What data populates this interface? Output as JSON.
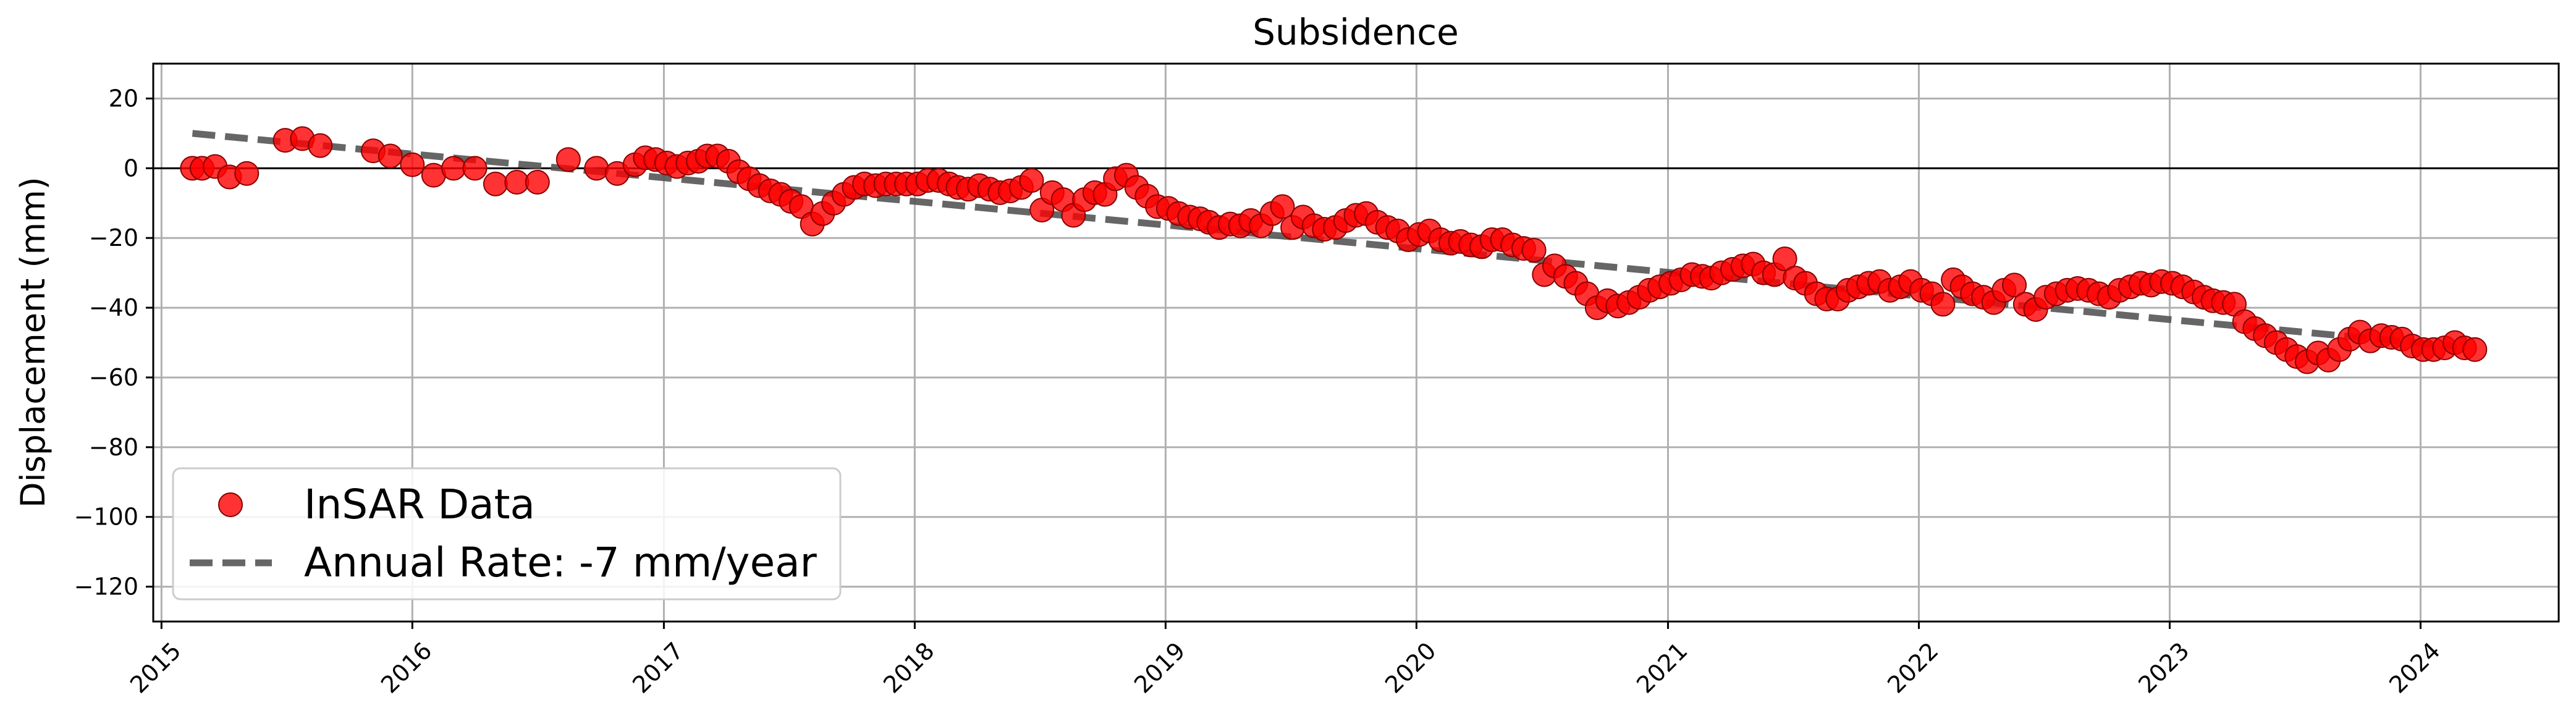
{
  "chart_data": {
    "type": "scatter",
    "title": "Subsidence",
    "xlabel": "",
    "ylabel": "Displacement (mm)",
    "xlim": [
      "2014-12-20",
      "2024-07-20"
    ],
    "ylim": [
      -130,
      30
    ],
    "x_ticks": [
      "2015",
      "2016",
      "2017",
      "2018",
      "2019",
      "2020",
      "2021",
      "2022",
      "2023",
      "2024"
    ],
    "y_ticks": [
      20,
      0,
      -20,
      -40,
      -60,
      -80,
      -100,
      -120
    ],
    "y_tick_labels": [
      "20",
      "0",
      "−20",
      "−40",
      "−60",
      "−80",
      "−100",
      "−120"
    ],
    "grid": true,
    "zero_line": true,
    "legend_position": "bottom-left",
    "series": [
      {
        "name": "InSAR Data",
        "kind": "scatter",
        "color": "#ff0000",
        "edge_color": "#8b0000",
        "points": [
          [
            "2015-02-15",
            0
          ],
          [
            "2015-03-01",
            0
          ],
          [
            "2015-03-20",
            0.5
          ],
          [
            "2015-04-10",
            -2.5
          ],
          [
            "2015-05-05",
            -1.5
          ],
          [
            "2015-06-30",
            8
          ],
          [
            "2015-07-25",
            8.5
          ],
          [
            "2015-08-20",
            6.5
          ],
          [
            "2015-11-05",
            5
          ],
          [
            "2015-11-30",
            3.5
          ],
          [
            "2016-01-01",
            1
          ],
          [
            "2016-02-01",
            -2
          ],
          [
            "2016-03-01",
            0
          ],
          [
            "2016-04-01",
            0
          ],
          [
            "2016-05-01",
            -4.5
          ],
          [
            "2016-06-01",
            -4
          ],
          [
            "2016-07-01",
            -4
          ],
          [
            "2016-08-15",
            2.5
          ],
          [
            "2016-09-25",
            0
          ],
          [
            "2016-10-25",
            -1.5
          ],
          [
            "2016-11-20",
            1
          ],
          [
            "2016-12-05",
            3
          ],
          [
            "2016-12-20",
            2.5
          ],
          [
            "2017-01-05",
            1.5
          ],
          [
            "2017-01-20",
            0.5
          ],
          [
            "2017-02-05",
            1.5
          ],
          [
            "2017-02-20",
            2
          ],
          [
            "2017-03-05",
            3.5
          ],
          [
            "2017-03-20",
            3.5
          ],
          [
            "2017-04-05",
            2
          ],
          [
            "2017-04-20",
            -1
          ],
          [
            "2017-05-05",
            -3
          ],
          [
            "2017-05-20",
            -5
          ],
          [
            "2017-06-05",
            -6.5
          ],
          [
            "2017-06-20",
            -7.5
          ],
          [
            "2017-07-05",
            -9.5
          ],
          [
            "2017-07-20",
            -11
          ],
          [
            "2017-08-05",
            -16
          ],
          [
            "2017-08-20",
            -13
          ],
          [
            "2017-09-05",
            -10
          ],
          [
            "2017-09-20",
            -7.5
          ],
          [
            "2017-10-05",
            -5.5
          ],
          [
            "2017-10-20",
            -4.5
          ],
          [
            "2017-11-05",
            -5
          ],
          [
            "2017-11-20",
            -4.5
          ],
          [
            "2017-12-05",
            -4.5
          ],
          [
            "2017-12-20",
            -4.5
          ],
          [
            "2018-01-05",
            -4.5
          ],
          [
            "2018-01-20",
            -3.5
          ],
          [
            "2018-02-05",
            -3.5
          ],
          [
            "2018-02-20",
            -4.5
          ],
          [
            "2018-03-05",
            -5.5
          ],
          [
            "2018-03-20",
            -6
          ],
          [
            "2018-04-05",
            -5
          ],
          [
            "2018-04-20",
            -6
          ],
          [
            "2018-05-05",
            -7
          ],
          [
            "2018-05-20",
            -6.5
          ],
          [
            "2018-06-05",
            -5.5
          ],
          [
            "2018-06-20",
            -3.5
          ],
          [
            "2018-07-05",
            -12
          ],
          [
            "2018-07-20",
            -7
          ],
          [
            "2018-08-05",
            -9
          ],
          [
            "2018-08-20",
            -13.5
          ],
          [
            "2018-09-05",
            -9
          ],
          [
            "2018-09-20",
            -7
          ],
          [
            "2018-10-05",
            -7.5
          ],
          [
            "2018-10-20",
            -3
          ],
          [
            "2018-11-05",
            -2
          ],
          [
            "2018-11-20",
            -5.5
          ],
          [
            "2018-12-05",
            -8
          ],
          [
            "2018-12-20",
            -11
          ],
          [
            "2019-01-05",
            -11.5
          ],
          [
            "2019-01-20",
            -13
          ],
          [
            "2019-02-05",
            -14
          ],
          [
            "2019-02-20",
            -14.5
          ],
          [
            "2019-03-05",
            -15.5
          ],
          [
            "2019-03-20",
            -17
          ],
          [
            "2019-04-05",
            -16
          ],
          [
            "2019-04-20",
            -16.5
          ],
          [
            "2019-05-05",
            -15
          ],
          [
            "2019-05-20",
            -16.5
          ],
          [
            "2019-06-05",
            -13
          ],
          [
            "2019-06-20",
            -11
          ],
          [
            "2019-07-05",
            -17
          ],
          [
            "2019-07-20",
            -14
          ],
          [
            "2019-08-05",
            -16.5
          ],
          [
            "2019-08-20",
            -17.5
          ],
          [
            "2019-09-05",
            -17
          ],
          [
            "2019-09-20",
            -15
          ],
          [
            "2019-10-05",
            -13.5
          ],
          [
            "2019-10-20",
            -13
          ],
          [
            "2019-11-05",
            -15.5
          ],
          [
            "2019-11-20",
            -17
          ],
          [
            "2019-12-05",
            -18
          ],
          [
            "2019-12-20",
            -20.5
          ],
          [
            "2020-01-05",
            -19
          ],
          [
            "2020-01-20",
            -18
          ],
          [
            "2020-02-05",
            -20.5
          ],
          [
            "2020-02-20",
            -21.5
          ],
          [
            "2020-03-05",
            -21
          ],
          [
            "2020-03-20",
            -22
          ],
          [
            "2020-04-05",
            -22.5
          ],
          [
            "2020-04-20",
            -20.5
          ],
          [
            "2020-05-05",
            -20.5
          ],
          [
            "2020-05-20",
            -22
          ],
          [
            "2020-06-05",
            -23
          ],
          [
            "2020-06-20",
            -23.5
          ],
          [
            "2020-07-05",
            -30.5
          ],
          [
            "2020-07-20",
            -28
          ],
          [
            "2020-08-05",
            -31
          ],
          [
            "2020-08-20",
            -33
          ],
          [
            "2020-09-05",
            -36
          ],
          [
            "2020-09-20",
            -40
          ],
          [
            "2020-10-05",
            -38
          ],
          [
            "2020-10-20",
            -39.5
          ],
          [
            "2020-11-05",
            -38.5
          ],
          [
            "2020-11-20",
            -37
          ],
          [
            "2020-12-05",
            -35
          ],
          [
            "2020-12-20",
            -34
          ],
          [
            "2021-01-05",
            -33
          ],
          [
            "2021-01-20",
            -32
          ],
          [
            "2021-02-05",
            -30.5
          ],
          [
            "2021-02-20",
            -31
          ],
          [
            "2021-03-05",
            -31.5
          ],
          [
            "2021-03-20",
            -30
          ],
          [
            "2021-04-05",
            -29
          ],
          [
            "2021-04-20",
            -28
          ],
          [
            "2021-05-05",
            -27.5
          ],
          [
            "2021-05-20",
            -30
          ],
          [
            "2021-06-05",
            -30.5
          ],
          [
            "2021-06-20",
            -26
          ],
          [
            "2021-07-05",
            -31.5
          ],
          [
            "2021-07-20",
            -33
          ],
          [
            "2021-08-05",
            -36
          ],
          [
            "2021-08-20",
            -37.5
          ],
          [
            "2021-09-05",
            -37.5
          ],
          [
            "2021-09-20",
            -35
          ],
          [
            "2021-10-05",
            -34
          ],
          [
            "2021-10-20",
            -33
          ],
          [
            "2021-11-05",
            -32.5
          ],
          [
            "2021-11-20",
            -35
          ],
          [
            "2021-12-05",
            -34
          ],
          [
            "2021-12-20",
            -32.5
          ],
          [
            "2022-01-05",
            -35
          ],
          [
            "2022-01-20",
            -36
          ],
          [
            "2022-02-05",
            -39
          ],
          [
            "2022-02-20",
            -32
          ],
          [
            "2022-03-05",
            -34
          ],
          [
            "2022-03-20",
            -36
          ],
          [
            "2022-04-05",
            -37
          ],
          [
            "2022-04-20",
            -38.5
          ],
          [
            "2022-05-05",
            -35
          ],
          [
            "2022-05-20",
            -33.5
          ],
          [
            "2022-06-05",
            -39
          ],
          [
            "2022-06-20",
            -40.5
          ],
          [
            "2022-07-05",
            -37
          ],
          [
            "2022-07-20",
            -36
          ],
          [
            "2022-08-05",
            -35
          ],
          [
            "2022-08-20",
            -34.5
          ],
          [
            "2022-09-05",
            -35
          ],
          [
            "2022-09-20",
            -36
          ],
          [
            "2022-10-05",
            -37
          ],
          [
            "2022-10-20",
            -35
          ],
          [
            "2022-11-05",
            -34
          ],
          [
            "2022-11-20",
            -33
          ],
          [
            "2022-12-05",
            -33.5
          ],
          [
            "2022-12-20",
            -32.5
          ],
          [
            "2023-01-05",
            -33
          ],
          [
            "2023-01-20",
            -34
          ],
          [
            "2023-02-05",
            -35.5
          ],
          [
            "2023-02-20",
            -37
          ],
          [
            "2023-03-05",
            -38
          ],
          [
            "2023-03-20",
            -38.5
          ],
          [
            "2023-04-05",
            -39
          ],
          [
            "2023-04-20",
            -44
          ],
          [
            "2023-05-05",
            -46
          ],
          [
            "2023-05-20",
            -48
          ],
          [
            "2023-06-05",
            -50
          ],
          [
            "2023-06-20",
            -52
          ],
          [
            "2023-07-05",
            -54
          ],
          [
            "2023-07-20",
            -55.5
          ],
          [
            "2023-08-05",
            -53
          ],
          [
            "2023-08-20",
            -55
          ],
          [
            "2023-09-05",
            -52
          ],
          [
            "2023-09-20",
            -49
          ],
          [
            "2023-10-05",
            -47
          ],
          [
            "2023-10-20",
            -49.5
          ],
          [
            "2023-11-05",
            -48
          ],
          [
            "2023-11-20",
            -48.5
          ],
          [
            "2023-12-05",
            -49
          ],
          [
            "2023-12-20",
            -51
          ],
          [
            "2024-01-05",
            -52
          ],
          [
            "2024-01-20",
            -52
          ],
          [
            "2024-02-05",
            -51.5
          ],
          [
            "2024-02-20",
            -50
          ],
          [
            "2024-03-05",
            -51.5
          ],
          [
            "2024-03-20",
            -52
          ]
        ]
      },
      {
        "name": "Annual Rate: -7 mm/year",
        "kind": "line",
        "style": "dashed",
        "color": "#555555",
        "points": [
          [
            "2015-02-15",
            10
          ],
          [
            "2024-02-15",
            -51
          ]
        ]
      }
    ]
  }
}
